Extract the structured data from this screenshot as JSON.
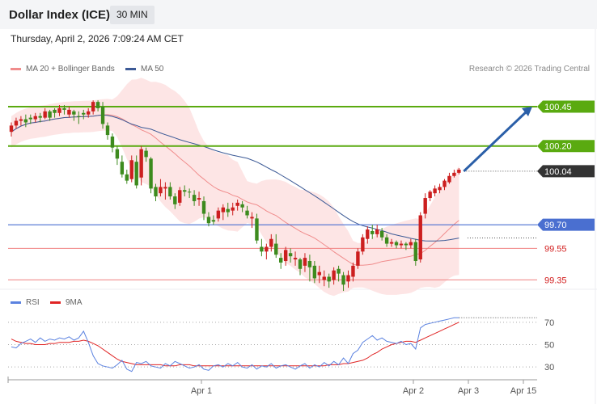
{
  "header": {
    "title": "Dollar Index (ICE)",
    "interval": "30 MIN"
  },
  "timestamp": "Thursday, April 2, 2026 7:09:24 AM CET",
  "legend": {
    "ma20": "MA 20 + Bollinger Bands",
    "ma50": "MA 50",
    "rsi": "RSI",
    "ma9": "9MA"
  },
  "credit": "Research © 2026 Trading Central",
  "colors": {
    "up": "#3d8b1e",
    "down": "#cc1f1f",
    "band": "#fde1e1",
    "ma20": "#f08c8c",
    "ma50": "#3c5a96",
    "resistance": "#5aaa10",
    "pivot": "#4a6fd0",
    "support": "#f08080",
    "rsi": "#5b82e0",
    "ma9": "#e02424",
    "arrow": "#2b5fa8"
  },
  "chart_data": [
    {
      "type": "candlestick",
      "title": "Dollar Index (ICE)",
      "interval": "30 MIN",
      "ylim": [
        99.27,
        100.65
      ],
      "x_ticks": [
        "Apr 1",
        "Apr 2",
        "Apr 3",
        "Apr 15"
      ],
      "last_price": "100.04",
      "levels": [
        {
          "label": "100.45",
          "value": 100.45,
          "type": "resistance"
        },
        {
          "label": "100.20",
          "value": 100.2,
          "type": "resistance"
        },
        {
          "label": "100.04",
          "value": 100.04,
          "type": "last"
        },
        {
          "label": "99.70",
          "value": 99.7,
          "type": "pivot"
        },
        {
          "label": "99.55",
          "value": 99.55,
          "type": "support"
        },
        {
          "label": "99.35",
          "value": 99.35,
          "type": "support"
        }
      ],
      "projection": {
        "from": 100.04,
        "to": 100.45
      },
      "candles": [
        [
          100.33,
          100.35,
          100.26,
          100.29
        ],
        [
          100.36,
          100.38,
          100.31,
          100.33
        ],
        [
          100.37,
          100.39,
          100.33,
          100.36
        ],
        [
          100.35,
          100.4,
          100.32,
          100.37
        ],
        [
          100.37,
          100.4,
          100.34,
          100.38
        ],
        [
          100.39,
          100.41,
          100.35,
          100.37
        ],
        [
          100.38,
          100.41,
          100.35,
          100.39
        ],
        [
          100.42,
          100.44,
          100.37,
          100.38
        ],
        [
          100.38,
          100.43,
          100.36,
          100.42
        ],
        [
          100.41,
          100.44,
          100.38,
          100.43
        ],
        [
          100.44,
          100.46,
          100.39,
          100.41
        ],
        [
          100.43,
          100.46,
          100.4,
          100.44
        ],
        [
          100.43,
          100.45,
          100.38,
          100.4
        ],
        [
          100.4,
          100.43,
          100.36,
          100.42
        ],
        [
          100.39,
          100.42,
          100.34,
          100.39
        ],
        [
          100.4,
          100.43,
          100.37,
          100.41
        ],
        [
          100.42,
          100.44,
          100.38,
          100.4
        ],
        [
          100.48,
          100.49,
          100.4,
          100.42
        ],
        [
          100.44,
          100.49,
          100.42,
          100.48
        ],
        [
          100.34,
          100.48,
          100.31,
          100.45
        ],
        [
          100.27,
          100.35,
          100.24,
          100.33
        ],
        [
          100.19,
          100.28,
          100.16,
          100.26
        ],
        [
          100.12,
          100.2,
          100.08,
          100.18
        ],
        [
          100.02,
          100.14,
          100.0,
          100.1
        ],
        [
          99.98,
          100.05,
          99.96,
          100.02
        ],
        [
          100.11,
          100.14,
          99.97,
          99.99
        ],
        [
          99.95,
          100.14,
          99.93,
          100.1
        ],
        [
          100.18,
          100.2,
          99.95,
          100.0
        ],
        [
          100.13,
          100.19,
          100.1,
          100.17
        ],
        [
          99.93,
          100.13,
          99.9,
          100.12
        ],
        [
          99.88,
          99.96,
          99.85,
          99.94
        ],
        [
          99.94,
          99.99,
          99.88,
          99.9
        ],
        [
          99.94,
          99.97,
          99.86,
          99.93
        ],
        [
          99.88,
          99.97,
          99.86,
          99.94
        ],
        [
          99.83,
          99.9,
          99.8,
          99.88
        ],
        [
          99.92,
          99.94,
          99.82,
          99.84
        ],
        [
          99.91,
          99.95,
          99.88,
          99.92
        ],
        [
          99.91,
          99.93,
          99.87,
          99.91
        ],
        [
          99.85,
          99.92,
          99.82,
          99.89
        ],
        [
          99.87,
          99.91,
          99.82,
          99.86
        ],
        [
          99.77,
          99.88,
          99.73,
          99.85
        ],
        [
          99.71,
          99.78,
          99.69,
          99.75
        ],
        [
          99.72,
          99.76,
          99.7,
          99.73
        ],
        [
          99.79,
          99.81,
          99.72,
          99.74
        ],
        [
          99.81,
          99.83,
          99.73,
          99.78
        ],
        [
          99.78,
          99.84,
          99.75,
          99.8
        ],
        [
          99.81,
          99.84,
          99.76,
          99.79
        ],
        [
          99.84,
          99.86,
          99.79,
          99.82
        ],
        [
          99.81,
          99.85,
          99.78,
          99.83
        ],
        [
          99.76,
          99.82,
          99.74,
          99.79
        ],
        [
          99.75,
          99.78,
          99.68,
          99.74
        ],
        [
          99.6,
          99.77,
          99.58,
          99.74
        ],
        [
          99.53,
          99.61,
          99.5,
          99.56
        ],
        [
          99.56,
          99.58,
          99.48,
          99.53
        ],
        [
          99.61,
          99.64,
          99.53,
          99.56
        ],
        [
          99.51,
          99.64,
          99.49,
          99.58
        ],
        [
          99.46,
          99.52,
          99.42,
          99.49
        ],
        [
          99.54,
          99.56,
          99.44,
          99.47
        ],
        [
          99.5,
          99.55,
          99.46,
          99.52
        ],
        [
          99.49,
          99.53,
          99.44,
          99.48
        ],
        [
          99.42,
          99.49,
          99.38,
          99.48
        ],
        [
          99.49,
          99.52,
          99.4,
          99.44
        ],
        [
          99.43,
          99.51,
          99.34,
          99.47
        ],
        [
          99.36,
          99.47,
          99.33,
          99.44
        ],
        [
          99.4,
          99.44,
          99.33,
          99.38
        ],
        [
          99.37,
          99.41,
          99.31,
          99.35
        ],
        [
          99.34,
          99.39,
          99.3,
          99.37
        ],
        [
          99.41,
          99.43,
          99.32,
          99.35
        ],
        [
          99.39,
          99.44,
          99.34,
          99.42
        ],
        [
          99.32,
          99.4,
          99.28,
          99.38
        ],
        [
          99.38,
          99.41,
          99.3,
          99.34
        ],
        [
          99.44,
          99.46,
          99.34,
          99.37
        ],
        [
          99.53,
          99.55,
          99.42,
          99.44
        ],
        [
          99.62,
          99.64,
          99.51,
          99.53
        ],
        [
          99.67,
          99.69,
          99.58,
          99.61
        ],
        [
          99.64,
          99.7,
          99.61,
          99.66
        ],
        [
          99.67,
          99.7,
          99.62,
          99.64
        ],
        [
          99.62,
          99.68,
          99.6,
          99.66
        ],
        [
          99.58,
          99.64,
          99.56,
          99.62
        ],
        [
          99.59,
          99.61,
          99.56,
          99.58
        ],
        [
          99.57,
          99.6,
          99.55,
          99.59
        ],
        [
          99.58,
          99.6,
          99.55,
          99.57
        ],
        [
          99.57,
          99.59,
          99.54,
          99.58
        ],
        [
          99.59,
          99.61,
          99.55,
          99.57
        ],
        [
          99.47,
          99.61,
          99.44,
          99.59
        ],
        [
          99.76,
          99.78,
          99.46,
          99.48
        ],
        [
          99.87,
          99.9,
          99.74,
          99.77
        ],
        [
          99.91,
          99.92,
          99.85,
          99.87
        ],
        [
          99.93,
          99.95,
          99.88,
          99.9
        ],
        [
          99.94,
          99.96,
          99.9,
          99.92
        ],
        [
          99.98,
          99.99,
          99.92,
          99.94
        ],
        [
          100.01,
          100.03,
          99.96,
          99.97
        ],
        [
          100.03,
          100.05,
          100.0,
          100.01
        ],
        [
          100.05,
          100.06,
          100.02,
          100.03
        ]
      ],
      "series": [
        {
          "name": "MA 20 + Bollinger Bands",
          "type": "band"
        },
        {
          "name": "MA 50",
          "type": "line"
        }
      ]
    },
    {
      "type": "line",
      "title": "RSI",
      "ylim": [
        20,
        80
      ],
      "y_ticks": [
        70,
        50,
        30
      ],
      "series": [
        {
          "name": "RSI",
          "values": [
            48,
            47,
            51,
            53,
            55,
            52,
            56,
            53,
            55,
            54,
            56,
            55,
            57,
            54,
            56,
            62,
            52,
            40,
            33,
            31,
            30,
            29,
            32,
            36,
            28,
            26,
            34,
            33,
            35,
            31,
            30,
            29,
            33,
            31,
            35,
            33,
            31,
            29,
            30,
            32,
            28,
            27,
            31,
            32,
            30,
            33,
            31,
            34,
            30,
            29,
            32,
            28,
            31,
            30,
            33,
            29,
            31,
            32,
            30,
            28,
            31,
            33,
            29,
            32,
            30,
            34,
            31,
            35,
            32,
            38,
            33,
            42,
            45,
            52,
            55,
            58,
            54,
            56,
            53,
            52,
            51,
            53,
            50,
            51,
            46,
            65,
            68,
            69,
            70,
            71,
            72,
            73,
            74,
            74
          ]
        },
        {
          "name": "9MA",
          "values": [
            55,
            53,
            52,
            51,
            51,
            50,
            50,
            50,
            51,
            51,
            52,
            52,
            52,
            53,
            53,
            54,
            53,
            51,
            49,
            46,
            43,
            40,
            37,
            35,
            34,
            33,
            32,
            32,
            32,
            32,
            32,
            32,
            31,
            31,
            31,
            32,
            32,
            32,
            31,
            31,
            31,
            31,
            31,
            31,
            31,
            31,
            31,
            31,
            31,
            31,
            31,
            31,
            31,
            31,
            31,
            31,
            31,
            31,
            31,
            31,
            31,
            31,
            31,
            31,
            31,
            31,
            32,
            32,
            32,
            33,
            33,
            34,
            35,
            36,
            38,
            41,
            43,
            46,
            48,
            50,
            51,
            52,
            53,
            53,
            52,
            54,
            56,
            58,
            60,
            62,
            64,
            66,
            68,
            70
          ]
        }
      ]
    }
  ]
}
